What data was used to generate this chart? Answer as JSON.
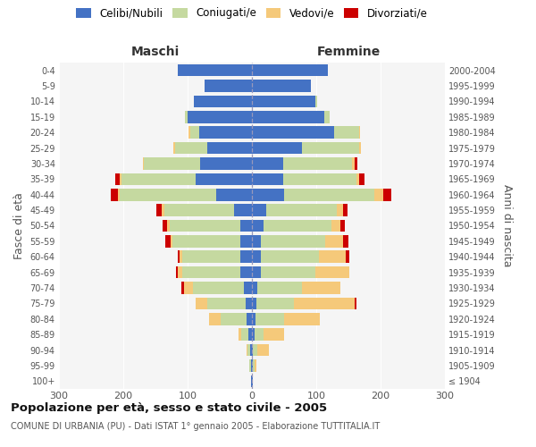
{
  "age_groups": [
    "100+",
    "95-99",
    "90-94",
    "85-89",
    "80-84",
    "75-79",
    "70-74",
    "65-69",
    "60-64",
    "55-59",
    "50-54",
    "45-49",
    "40-44",
    "35-39",
    "30-34",
    "25-29",
    "20-24",
    "15-19",
    "10-14",
    "5-9",
    "0-4"
  ],
  "birth_years": [
    "≤ 1904",
    "1905-1909",
    "1910-1914",
    "1915-1919",
    "1920-1924",
    "1925-1929",
    "1930-1934",
    "1935-1939",
    "1940-1944",
    "1945-1949",
    "1950-1954",
    "1955-1959",
    "1960-1964",
    "1965-1969",
    "1970-1974",
    "1975-1979",
    "1980-1984",
    "1985-1989",
    "1990-1994",
    "1995-1999",
    "2000-2004"
  ],
  "maschi": {
    "celibi": [
      1,
      2,
      3,
      5,
      8,
      10,
      12,
      18,
      18,
      18,
      18,
      28,
      55,
      88,
      80,
      70,
      82,
      100,
      90,
      74,
      115
    ],
    "coniugati": [
      1,
      2,
      4,
      12,
      40,
      60,
      80,
      90,
      90,
      105,
      110,
      108,
      150,
      115,
      88,
      50,
      14,
      4,
      0,
      0,
      0
    ],
    "vedovi": [
      0,
      0,
      2,
      4,
      18,
      18,
      14,
      7,
      4,
      4,
      4,
      4,
      4,
      2,
      2,
      2,
      2,
      0,
      0,
      0,
      0
    ],
    "divorziati": [
      0,
      0,
      0,
      0,
      0,
      0,
      4,
      3,
      3,
      8,
      7,
      8,
      10,
      7,
      0,
      0,
      0,
      0,
      0,
      0,
      0
    ]
  },
  "femmine": {
    "nubili": [
      1,
      2,
      2,
      4,
      5,
      7,
      8,
      14,
      14,
      14,
      18,
      22,
      50,
      48,
      48,
      78,
      128,
      112,
      98,
      92,
      118
    ],
    "coniugate": [
      1,
      2,
      6,
      14,
      45,
      58,
      70,
      85,
      90,
      100,
      105,
      110,
      140,
      115,
      108,
      88,
      38,
      9,
      4,
      0,
      0
    ],
    "vedove": [
      0,
      3,
      18,
      32,
      56,
      95,
      60,
      52,
      42,
      28,
      14,
      9,
      14,
      4,
      4,
      4,
      2,
      0,
      0,
      0,
      0
    ],
    "divorziate": [
      0,
      0,
      0,
      0,
      0,
      2,
      0,
      0,
      5,
      8,
      8,
      8,
      12,
      8,
      4,
      0,
      0,
      0,
      0,
      0,
      0
    ]
  },
  "color_celibi": "#4472C4",
  "color_coniugati": "#C5D9A0",
  "color_vedovi": "#F5C97A",
  "color_divorziati": "#CC0000",
  "xlim": 300,
  "title": "Popolazione per età, sesso e stato civile - 2005",
  "subtitle": "COMUNE DI URBANIA (PU) - Dati ISTAT 1° gennaio 2005 - Elaborazione TUTTITALIA.IT",
  "ylabel_left": "Fasce di età",
  "ylabel_right": "Anni di nascita",
  "xlabel_maschi": "Maschi",
  "xlabel_femmine": "Femmine",
  "bg_color": "#f5f5f5"
}
